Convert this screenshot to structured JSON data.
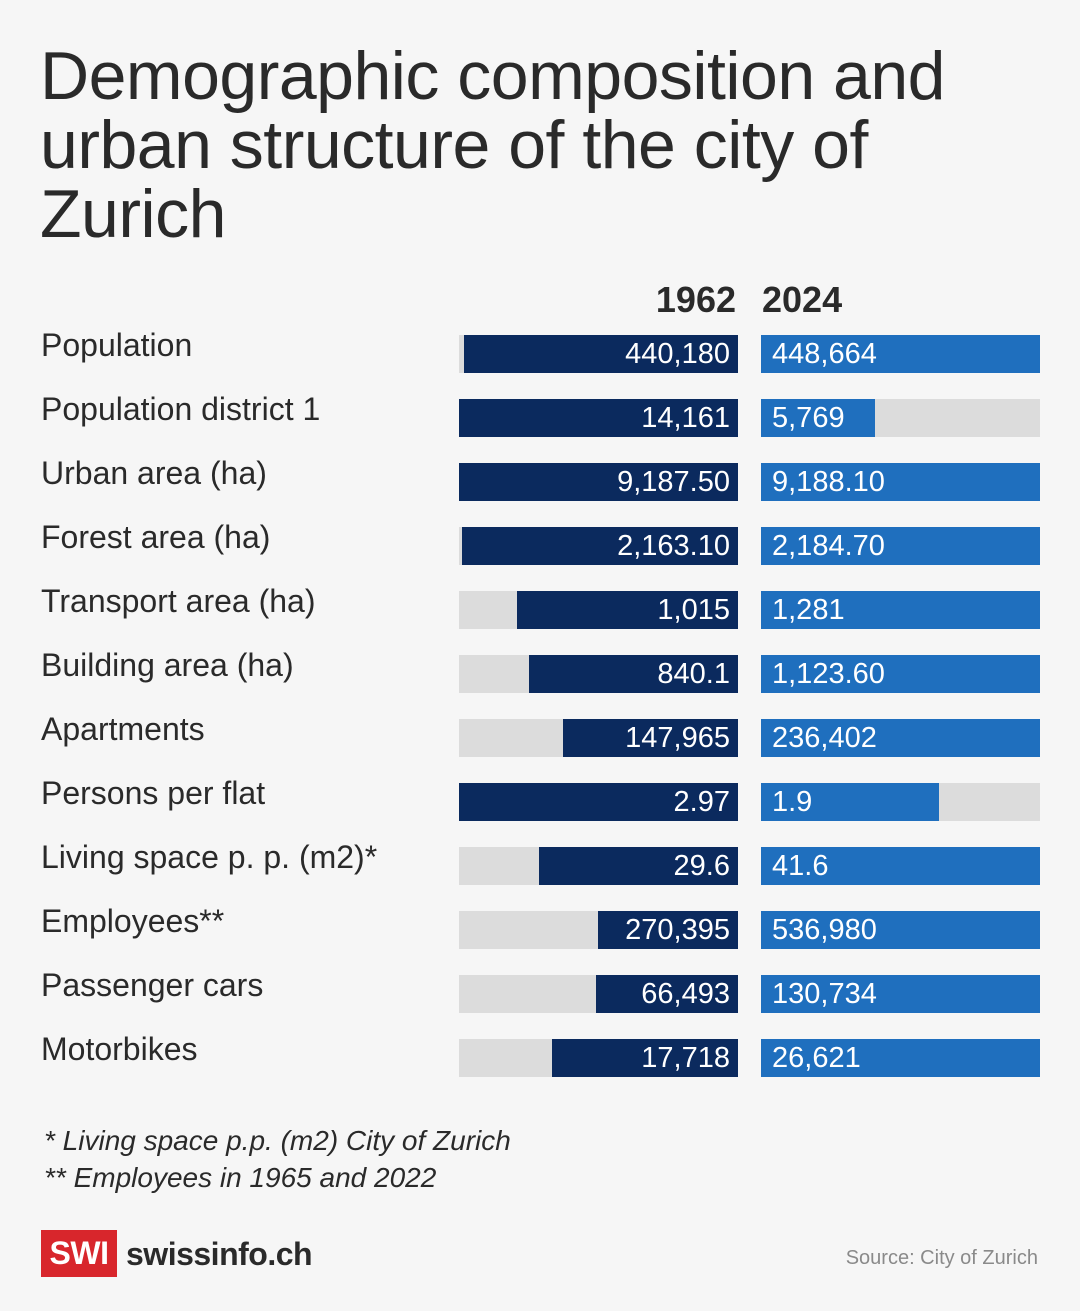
{
  "title": "Demographic composition and urban structure of the city of Zurich",
  "chart_data": {
    "type": "bar",
    "series": [
      {
        "name": "1962",
        "color": "#0b2a5e"
      },
      {
        "name": "2024",
        "color": "#1f6fbe"
      }
    ],
    "track_color": "#dcdcdc",
    "rows": [
      {
        "label": "Population",
        "v1962": 440180,
        "v2024": 448664,
        "t1962": "440,180",
        "t2024": "448,664"
      },
      {
        "label": "Population district 1",
        "v1962": 14161,
        "v2024": 5769,
        "t1962": "14,161",
        "t2024": "5,769"
      },
      {
        "label": "Urban area (ha)",
        "v1962": 9187.5,
        "v2024": 9188.1,
        "t1962": "9,187.50",
        "t2024": "9,188.10"
      },
      {
        "label": "Forest area (ha)",
        "v1962": 2163.1,
        "v2024": 2184.7,
        "t1962": "2,163.10",
        "t2024": "2,184.70"
      },
      {
        "label": "Transport area (ha)",
        "v1962": 1015,
        "v2024": 1281,
        "t1962": "1,015",
        "t2024": "1,281"
      },
      {
        "label": "Building area (ha)",
        "v1962": 840.1,
        "v2024": 1123.6,
        "t1962": "840.1",
        "t2024": "1,123.60"
      },
      {
        "label": "Apartments",
        "v1962": 147965,
        "v2024": 236402,
        "t1962": "147,965",
        "t2024": "236,402"
      },
      {
        "label": "Persons per flat",
        "v1962": 2.97,
        "v2024": 1.9,
        "t1962": "2.97",
        "t2024": "1.9"
      },
      {
        "label": "Living space p. p. (m2)*",
        "v1962": 29.6,
        "v2024": 41.6,
        "t1962": "29.6",
        "t2024": "41.6"
      },
      {
        "label": "Employees**",
        "v1962": 270395,
        "v2024": 536980,
        "t1962": "270,395",
        "t2024": "536,980"
      },
      {
        "label": "Passenger cars",
        "v1962": 66493,
        "v2024": 130734,
        "t1962": "66,493",
        "t2024": "130,734"
      },
      {
        "label": "Motorbikes",
        "v1962": 17718,
        "v2024": 26621,
        "t1962": "17,718",
        "t2024": "26,621"
      }
    ]
  },
  "footnotes": [
    "* Living space p.p. (m2) City of Zurich",
    "** Employees in 1965 and 2022"
  ],
  "brand": {
    "logo_box": "SWI",
    "logo_text": "swissinfo.ch",
    "logo_color": "#d8262c"
  },
  "source": "Source: City of Zurich"
}
